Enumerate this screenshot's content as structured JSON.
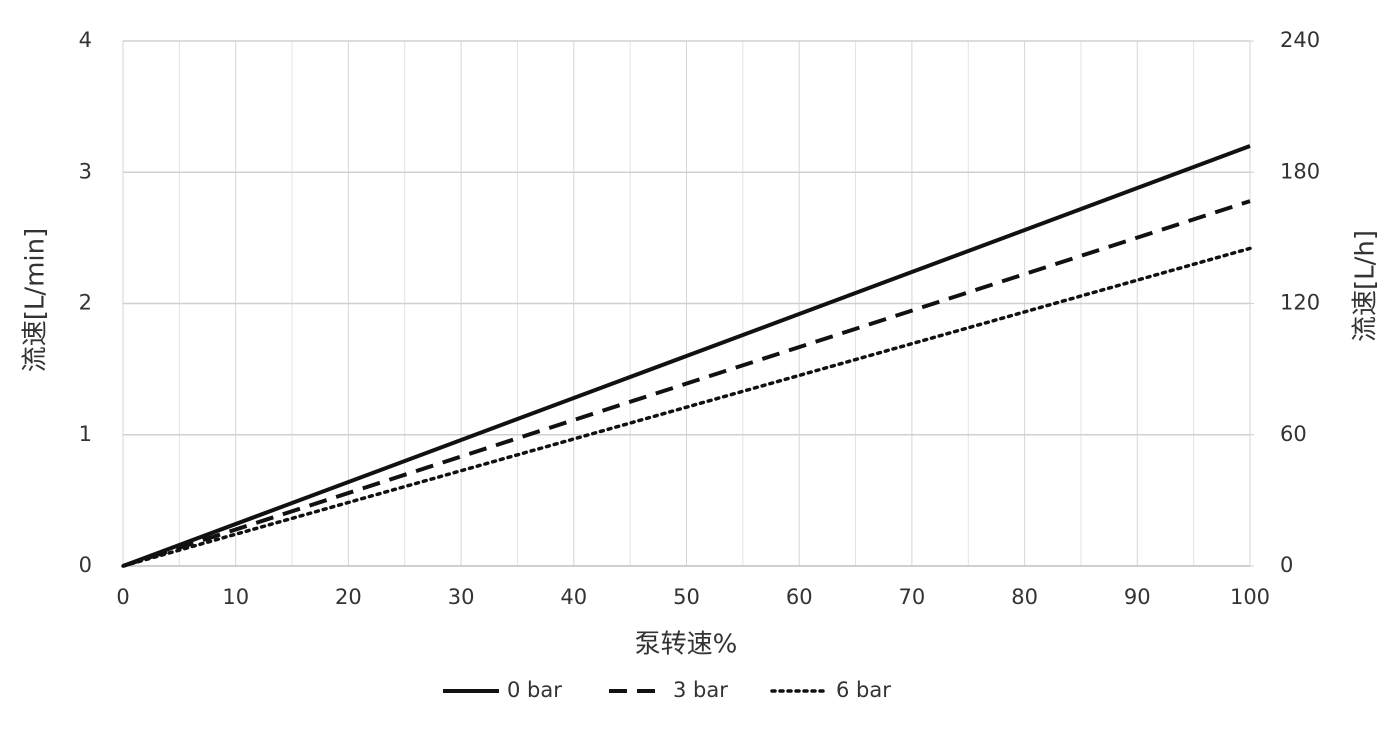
{
  "chart_data": {
    "type": "line",
    "x_label": "泵转速%",
    "y_label": "流速[L/min]",
    "y2_label": "流速[L/h]",
    "xlim": [
      0,
      100
    ],
    "xticks": [
      0,
      10,
      20,
      30,
      40,
      50,
      60,
      70,
      80,
      90,
      100
    ],
    "xminorticks": [
      5,
      15,
      25,
      35,
      45,
      55,
      65,
      75,
      85,
      95
    ],
    "ylim": [
      0,
      4
    ],
    "yticks": [
      0,
      1,
      2,
      3,
      4
    ],
    "y2lim": [
      0,
      240
    ],
    "y2ticks": [
      0,
      60,
      120,
      180,
      240
    ],
    "grid": true,
    "legend": "bottom",
    "x": [
      0,
      100
    ],
    "series": [
      {
        "name": "0 bar",
        "color": "#111111",
        "dash": "solid",
        "values": [
          0,
          3.2
        ]
      },
      {
        "name": "3 bar",
        "color": "#111111",
        "dash": "dashed",
        "values": [
          0,
          2.78
        ]
      },
      {
        "name": "6 bar",
        "color": "#111111",
        "dash": "dotted",
        "values": [
          0,
          2.42
        ]
      }
    ]
  }
}
